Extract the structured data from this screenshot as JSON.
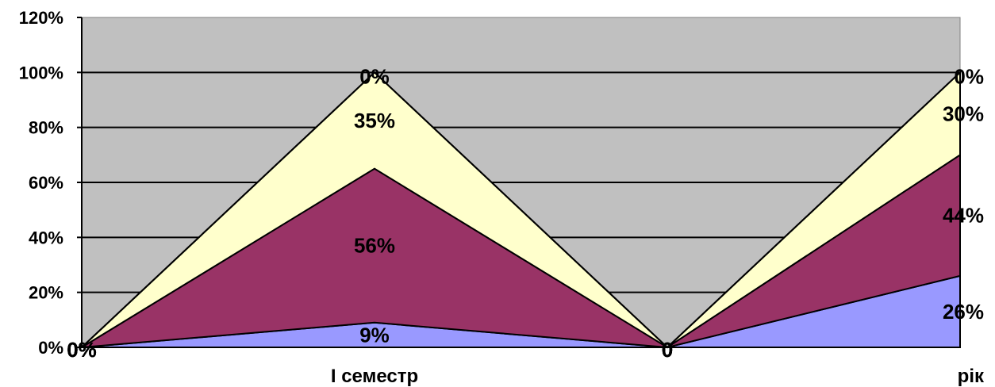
{
  "chart_data": {
    "type": "area",
    "stacked": true,
    "categories": [
      "",
      "I семестр",
      "",
      "рік"
    ],
    "ylim": [
      0,
      1.2
    ],
    "y_ticks": [
      "0%",
      "20%",
      "40%",
      "60%",
      "80%",
      "100%",
      "120%"
    ],
    "grid": true,
    "plot_background": "#C0C0C0",
    "series": [
      {
        "color": "#9999FF",
        "values": [
          0,
          0.09,
          0,
          0.26
        ],
        "labels": [
          "0%",
          "9%",
          "0",
          "26%"
        ]
      },
      {
        "color": "#993366",
        "values": [
          0,
          0.56,
          0,
          0.44
        ],
        "labels": [
          "0%",
          "56%",
          "0",
          "44%"
        ]
      },
      {
        "color": "#FFFFCC",
        "values": [
          0,
          0.35,
          0,
          0.3
        ],
        "labels": [
          "0%",
          "35%",
          "0",
          "30%"
        ]
      },
      {
        "color": "#CCFFFF",
        "values": [
          0,
          0,
          0,
          0
        ],
        "labels": [
          "0%",
          "0%",
          "0",
          "0%"
        ]
      }
    ]
  }
}
